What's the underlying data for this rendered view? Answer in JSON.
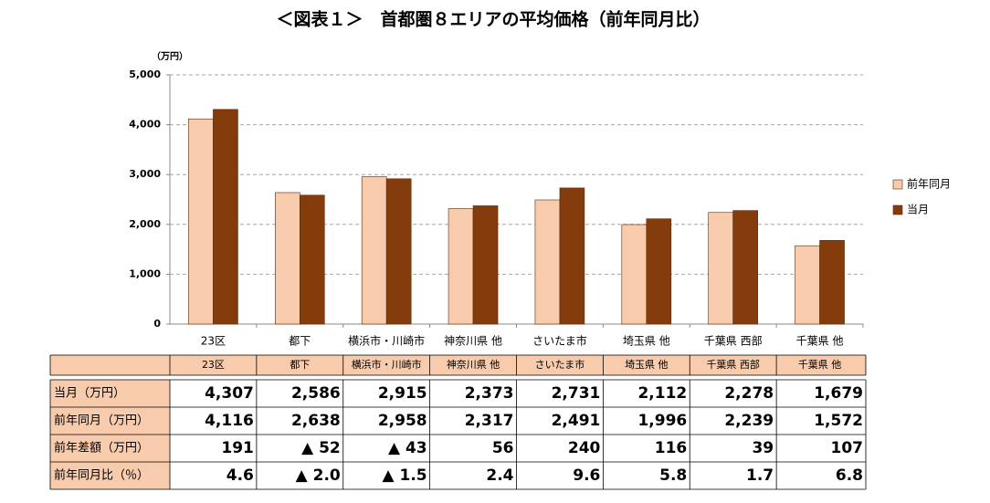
{
  "chart_data": {
    "type": "bar",
    "title": "＜図表１＞　首都圏８エリアの平均価格（前年同月比）",
    "y_axis_label": "（万円）",
    "categories": [
      "23区",
      "都下",
      "横浜市・川崎市",
      "神奈川県 他",
      "さいたま市",
      "埼玉県 他",
      "千葉県 西部",
      "千葉県 他"
    ],
    "series": [
      {
        "name": "前年同月",
        "color": "#f8cbad",
        "values": [
          4116,
          2638,
          2958,
          2317,
          2491,
          1996,
          2239,
          1572
        ],
        "value_labels": [
          "4,116",
          "2,638",
          "2,958",
          "2,317",
          "2,491",
          "1,996",
          "2,239",
          "1,572"
        ]
      },
      {
        "name": "当月",
        "color": "#843c0c",
        "values": [
          4307,
          2586,
          2915,
          2373,
          2731,
          2112,
          2278,
          1679
        ],
        "value_labels": [
          "4,307",
          "2,586",
          "2,915",
          "2,373",
          "2,731",
          "2,112",
          "2,278",
          "1,679"
        ]
      }
    ],
    "ylim": [
      0,
      5000
    ],
    "yticks": [
      0,
      {
        "value": 1000,
        "label": "1,000"
      },
      {
        "value": 2000,
        "label": "2,000"
      },
      {
        "value": 3000,
        "label": "3,000"
      },
      {
        "value": 4000,
        "label": "4,000"
      },
      {
        "value": 5000,
        "label": "5,000"
      }
    ],
    "grid": true,
    "legend": "right"
  },
  "table": {
    "row_headers": [
      "当月（万円）",
      "前年同月（万円）",
      "前年差額（万円）",
      "前年同月比（％）"
    ],
    "rows": [
      [
        "191",
        "▲ 52",
        "▲ 43",
        "56",
        "240",
        "116",
        "39",
        "107"
      ],
      [
        "4.6",
        "▲ 2.0",
        "▲ 1.5",
        "2.4",
        "9.6",
        "5.8",
        "1.7",
        "6.8"
      ]
    ]
  }
}
